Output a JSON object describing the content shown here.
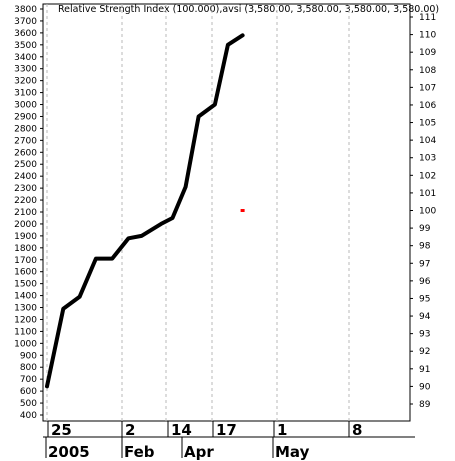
{
  "chart_data": {
    "type": "line",
    "title": "Relative Strength Index (100.000),avsi (3,580.00, 3,580.00, 3,580.00, 3,580.00)",
    "left_axis": {
      "min": 400,
      "max": 3800,
      "ticks": [
        400,
        500,
        600,
        700,
        800,
        900,
        1000,
        1100,
        1200,
        1300,
        1400,
        1500,
        1600,
        1700,
        1800,
        1900,
        2000,
        2100,
        2200,
        2300,
        2400,
        2500,
        2600,
        2700,
        2800,
        2900,
        3000,
        3100,
        3200,
        3300,
        3400,
        3500,
        3600,
        3700,
        3800
      ]
    },
    "right_axis": {
      "min": 89,
      "max": 111,
      "ticks": [
        89,
        90,
        91,
        92,
        93,
        94,
        95,
        96,
        97,
        98,
        99,
        100,
        101,
        102,
        103,
        104,
        105,
        106,
        107,
        108,
        109,
        110,
        111
      ]
    },
    "x_ticks": [
      "25",
      "2",
      "14",
      "17",
      "1",
      "8"
    ],
    "x_months": [
      "2005",
      "Feb",
      "Apr",
      "May"
    ],
    "grid": true,
    "series": [
      {
        "color": "#000000",
        "points": [
          {
            "x": 0.0,
            "y": 640
          },
          {
            "x": 1.0,
            "y": 1290
          },
          {
            "x": 2.0,
            "y": 1390
          },
          {
            "x": 3.0,
            "y": 1710
          },
          {
            "x": 4.0,
            "y": 1710
          },
          {
            "x": 5.0,
            "y": 1880
          },
          {
            "x": 5.8,
            "y": 1900
          },
          {
            "x": 7.0,
            "y": 2000
          },
          {
            "x": 7.7,
            "y": 2050
          },
          {
            "x": 8.5,
            "y": 2310
          },
          {
            "x": 9.3,
            "y": 2900
          },
          {
            "x": 10.3,
            "y": 3000
          },
          {
            "x": 11.1,
            "y": 3500
          },
          {
            "x": 12.0,
            "y": 3580
          }
        ]
      }
    ],
    "marker": {
      "x": 12.0,
      "y": 100,
      "axis": "right",
      "color": "#ff0000"
    }
  }
}
